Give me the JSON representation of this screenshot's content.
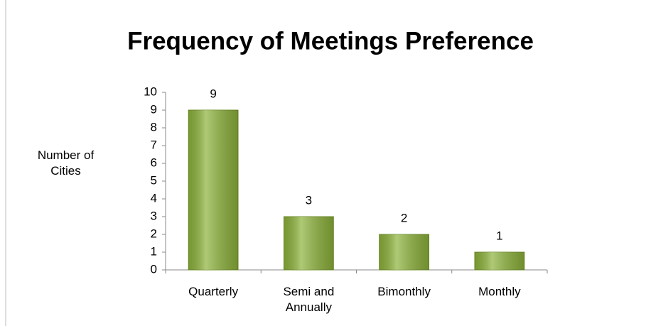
{
  "chart_data": {
    "type": "bar",
    "title": "Frequency of Meetings Preference",
    "y_label": "Number of Cities",
    "categories": [
      "Quarterly",
      "Semi and Annually",
      "Bimonthly",
      "Monthly"
    ],
    "values": [
      9,
      3,
      2,
      1
    ],
    "color": "#8db33a",
    "ylim": [
      0,
      10
    ],
    "yticks": [
      0,
      1,
      2,
      3,
      4,
      5,
      6,
      7,
      8,
      9,
      10
    ],
    "grid": false
  }
}
